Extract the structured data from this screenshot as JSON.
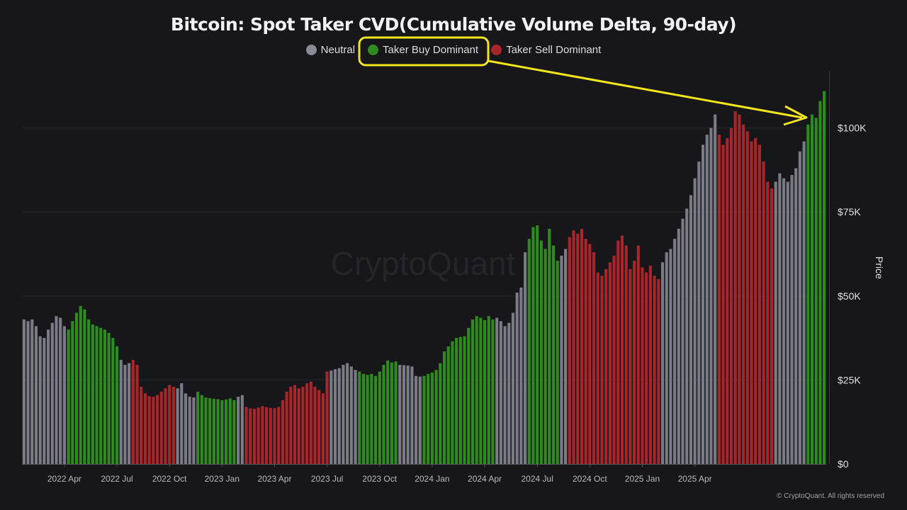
{
  "chart_data": {
    "type": "bar",
    "title": "Bitcoin: Spot Taker CVD(Cumulative Volume Delta, 90-day)",
    "ylabel": "Price",
    "ylim": [
      0,
      117000
    ],
    "y_ticks": [
      0,
      25000,
      50000,
      75000,
      100000
    ],
    "y_tick_labels": [
      "$0",
      "$25K",
      "$50K",
      "$75K",
      "$100K"
    ],
    "x_ticks": [
      "2022 Apr",
      "2022 Jul",
      "2022 Oct",
      "2023 Jan",
      "2023 Apr",
      "2023 Jul",
      "2023 Oct",
      "2024 Jan",
      "2024 Apr",
      "2024 Jul",
      "2024 Oct",
      "2025 Jan",
      "2025 Apr"
    ],
    "x_tick_weeks": [
      10,
      23,
      36,
      49,
      62,
      75,
      88,
      101,
      114,
      127,
      140,
      153,
      166
    ],
    "grid": true,
    "legend_placement": "top-center",
    "colors": {
      "Neutral": "#7b7b86",
      "Taker Buy Dominant": "#2f8a1f",
      "Taker Sell Dominant": "#a8262a"
    },
    "series": [
      {
        "name": "Neutral"
      },
      {
        "name": "Taker Buy Dominant"
      },
      {
        "name": "Taker Sell Dominant"
      }
    ],
    "segments": [
      {
        "signal": "Neutral",
        "values": [
          43000,
          42500,
          43000,
          41000,
          38000,
          37500,
          40000,
          42000,
          44000,
          43500,
          41000
        ]
      },
      {
        "signal": "Taker Buy Dominant",
        "values": [
          40000,
          42500,
          45000,
          47000,
          46000,
          43000,
          41500,
          41000,
          40500,
          40000,
          39000,
          37500,
          35000
        ]
      },
      {
        "signal": "Neutral",
        "values": [
          31000,
          29500,
          30000
        ]
      },
      {
        "signal": "Taker Sell Dominant",
        "values": [
          31000,
          29500,
          23000,
          21000,
          20200,
          20000,
          20500,
          21500,
          22500,
          23500,
          23000
        ]
      },
      {
        "signal": "Neutral",
        "values": [
          22500,
          24000,
          21000,
          20000,
          19800
        ]
      },
      {
        "signal": "Taker Buy Dominant",
        "values": [
          21500,
          20500,
          19800,
          19600,
          19400,
          19300,
          19000,
          19200,
          19500,
          19000
        ]
      },
      {
        "signal": "Neutral",
        "values": [
          20000,
          20500
        ]
      },
      {
        "signal": "Taker Sell Dominant",
        "values": [
          17000,
          16500,
          16400,
          16800,
          17200,
          16900,
          16700,
          16600,
          17000,
          19000,
          21500,
          23000,
          23500,
          22500,
          23000,
          24000,
          24500,
          23000,
          22000,
          21000,
          27500
        ]
      },
      {
        "signal": "Neutral",
        "values": [
          27800,
          28200,
          28500,
          29500,
          30000,
          29000,
          28000
        ]
      },
      {
        "signal": "Taker Buy Dominant",
        "values": [
          27500,
          26800,
          26500,
          26800,
          26200,
          27500,
          29500,
          30800,
          30200,
          30500
        ]
      },
      {
        "signal": "Neutral",
        "values": [
          29500,
          29400,
          29300,
          29000,
          26200,
          26000
        ]
      },
      {
        "signal": "Taker Buy Dominant",
        "values": [
          26200,
          26800,
          27200,
          28000,
          30000,
          33500,
          35000,
          36500,
          37500,
          37800,
          38000,
          40500,
          43000,
          44000,
          43500,
          42800,
          44000,
          43000
        ]
      },
      {
        "signal": "Neutral",
        "values": [
          43500,
          42500,
          41000,
          42000,
          45000,
          51000,
          52500,
          63000
        ]
      },
      {
        "signal": "Taker Buy Dominant",
        "values": [
          67000,
          70500,
          71000,
          66500,
          64000,
          70000,
          65000,
          60500
        ]
      },
      {
        "signal": "Neutral",
        "values": [
          62000,
          64000
        ]
      },
      {
        "signal": "Taker Sell Dominant",
        "values": [
          67500,
          69500,
          68500,
          70000,
          67000,
          65500,
          63000,
          57000,
          56000,
          58000,
          60000,
          62000,
          66500,
          68000,
          65000,
          58000,
          60500,
          65000,
          58500,
          57000,
          59000,
          56000,
          55000
        ]
      },
      {
        "signal": "Neutral",
        "values": [
          60000,
          63000,
          64000,
          67000,
          70000,
          73000,
          76000,
          80000,
          85000,
          90000,
          95000,
          98000,
          100000,
          104000
        ]
      },
      {
        "signal": "Taker Sell Dominant",
        "values": [
          98000,
          95000,
          97000,
          100000,
          105000,
          104000,
          101000,
          99000,
          96000,
          97000,
          95000,
          90000,
          84000,
          82000
        ]
      },
      {
        "signal": "Neutral",
        "values": [
          84000,
          86500,
          85000,
          84000,
          86000,
          88000,
          93000,
          96000
        ]
      },
      {
        "signal": "Taker Buy Dominant",
        "values": [
          101000,
          104000,
          103000,
          108000,
          111000
        ]
      }
    ]
  },
  "footer": {
    "copyright": "© CryptoQuant. All rights reserved"
  },
  "watermark": "CryptoQuant"
}
